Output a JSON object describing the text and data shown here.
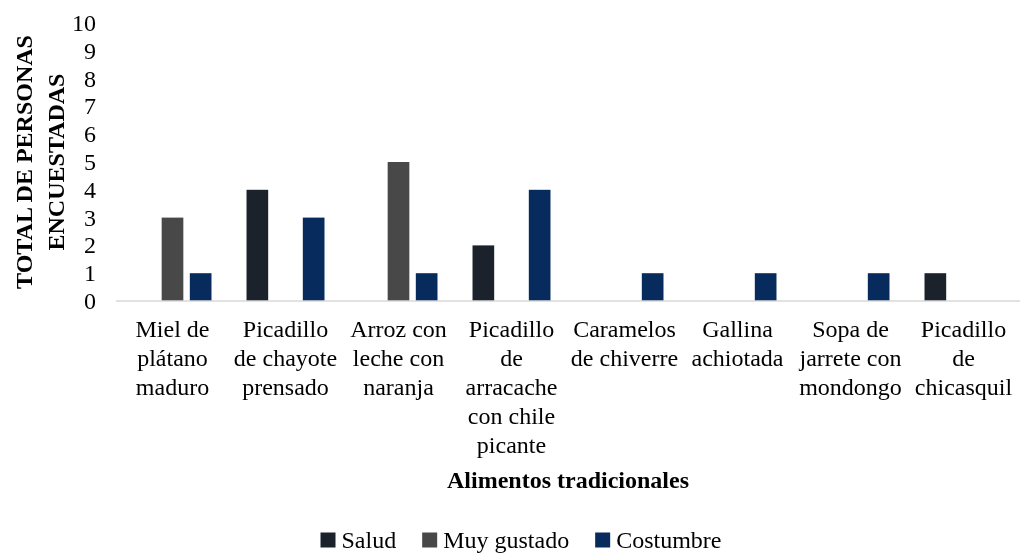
{
  "chart_data": {
    "type": "bar",
    "categories": [
      "Miel de plátano maduro",
      "Picadillo de chayote prensado",
      "Arroz con leche con naranja",
      "Picadillo de arracache con chile picante",
      "Caramelos de chiverre",
      "Gallina achiotada",
      "Sopa de jarrete con mondongo",
      "Picadillo de chicasquil"
    ],
    "series": [
      {
        "name": "Salud",
        "color": "#1c222c",
        "values": [
          0,
          4,
          0,
          2,
          0,
          0,
          0,
          1
        ]
      },
      {
        "name": "Muy gustado",
        "color": "#484848",
        "values": [
          3,
          0,
          5,
          0,
          0,
          0,
          0,
          0
        ]
      },
      {
        "name": "Costumbre",
        "color": "#062b5c",
        "values": [
          1,
          3,
          1,
          4,
          1,
          1,
          1,
          0
        ]
      }
    ],
    "xlabel": "Alimentos tradicionales",
    "ylabel": "TOTAL DE PERSONAS ENCUESTADAS",
    "ylim": [
      0,
      10
    ],
    "yticks": [
      0,
      1,
      2,
      3,
      4,
      5,
      6,
      7,
      8,
      9,
      10
    ],
    "legend": "bottom"
  }
}
